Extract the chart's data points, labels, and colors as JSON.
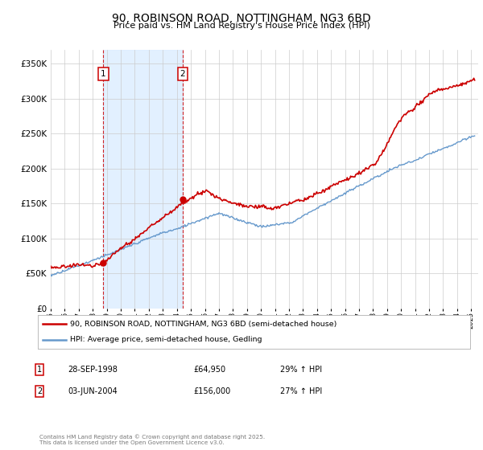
{
  "title": "90, ROBINSON ROAD, NOTTINGHAM, NG3 6BD",
  "subtitle": "Price paid vs. HM Land Registry's House Price Index (HPI)",
  "ylabel_ticks": [
    "£0",
    "£50K",
    "£100K",
    "£150K",
    "£200K",
    "£250K",
    "£300K",
    "£350K"
  ],
  "ytick_values": [
    0,
    50000,
    100000,
    150000,
    200000,
    250000,
    300000,
    350000
  ],
  "ylim": [
    0,
    370000
  ],
  "xlim_start": 1995.0,
  "xlim_end": 2025.5,
  "purchase1": {
    "label": "1",
    "date": "28-SEP-1998",
    "price": 64950,
    "pct": "29%",
    "year": 1998.75
  },
  "purchase2": {
    "label": "2",
    "date": "03-JUN-2004",
    "price": 156000,
    "pct": "27%",
    "year": 2004.42
  },
  "legend_line1": "90, ROBINSON ROAD, NOTTINGHAM, NG3 6BD (semi-detached house)",
  "legend_line2": "HPI: Average price, semi-detached house, Gedling",
  "footer": "Contains HM Land Registry data © Crown copyright and database right 2025.\nThis data is licensed under the Open Government Licence v3.0.",
  "table_rows": [
    {
      "num": "1",
      "date": "28-SEP-1998",
      "price": "£64,950",
      "change": "29% ↑ HPI"
    },
    {
      "num": "2",
      "date": "03-JUN-2004",
      "price": "£156,000",
      "change": "27% ↑ HPI"
    }
  ],
  "price_color": "#cc0000",
  "hpi_color": "#6699cc",
  "shade_color": "#ddeeff",
  "bg_color": "#ffffff",
  "grid_color": "#cccccc",
  "legend_border_color": "#aaaaaa",
  "number_box_color": "#cc0000"
}
